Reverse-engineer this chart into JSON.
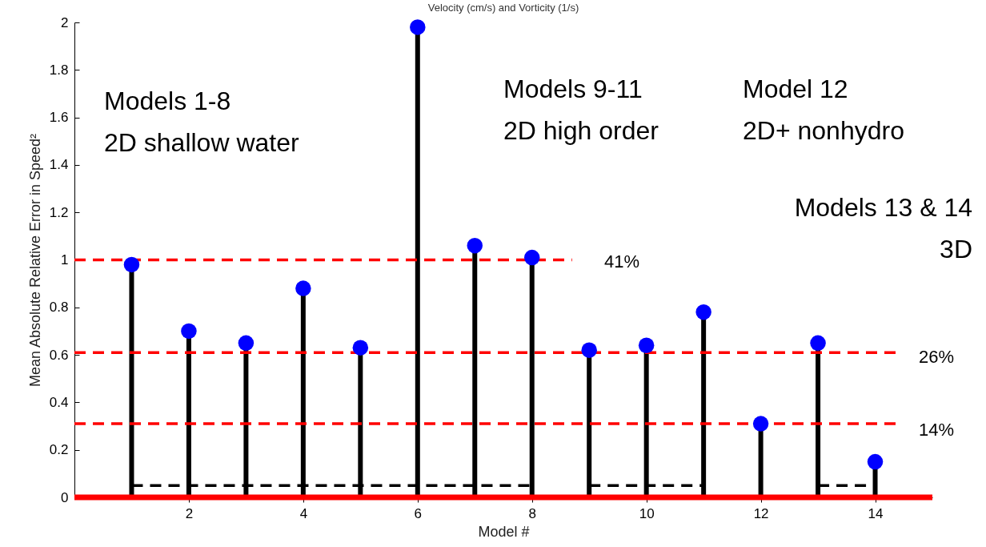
{
  "chart_data": {
    "type": "lollipop",
    "title": "Velocity (cm/s) and Vorticity (1/s)",
    "xlabel": "Model #",
    "ylabel": "Mean Absolute Relative Error in Speed²",
    "xlim": [
      0,
      15
    ],
    "xticks": [
      2,
      4,
      6,
      8,
      10,
      12,
      14
    ],
    "ylim": [
      0,
      2
    ],
    "yticks": [
      0,
      0.2,
      0.4,
      0.6,
      0.8,
      1,
      1.2,
      1.4,
      1.6,
      1.8,
      2
    ],
    "marker": "circle",
    "series": [
      {
        "color": "#0000ff",
        "x": [
          1,
          2,
          3,
          4,
          5,
          6,
          7,
          8,
          9,
          10,
          11,
          12,
          13,
          14
        ],
        "values": [
          0.98,
          0.7,
          0.65,
          0.88,
          0.63,
          1.98,
          1.06,
          1.01,
          0.62,
          0.64,
          0.78,
          0.31,
          0.65,
          0.15
        ]
      },
      {
        "type": "line",
        "marker": "none",
        "color": "#ff0000",
        "line_style": "dashed",
        "x": [
          0,
          8.7
        ],
        "values": [
          1,
          1
        ]
      },
      {
        "type": "line",
        "marker": "none",
        "color": "#ff0000",
        "line_style": "dashed",
        "x": [
          0,
          14.4
        ],
        "values": [
          0.61,
          0.61
        ]
      },
      {
        "type": "line",
        "marker": "none",
        "color": "#ff0000",
        "line_style": "dashed",
        "x": [
          0,
          14.4
        ],
        "values": [
          0.31,
          0.31
        ]
      },
      {
        "type": "line",
        "marker": "none",
        "color": "#000000",
        "line_style": "dashed",
        "x": [
          1,
          8
        ],
        "values": [
          0.05,
          0.05
        ]
      },
      {
        "type": "line",
        "marker": "none",
        "color": "#000000",
        "line_style": "dashed",
        "x": [
          9,
          11
        ],
        "values": [
          0.05,
          0.05
        ]
      },
      {
        "type": "line",
        "marker": "none",
        "color": "#000000",
        "line_style": "dashed",
        "x": [
          13,
          14
        ],
        "values": [
          0.05,
          0.05
        ]
      }
    ],
    "ref_lines": [
      {
        "axis": "y",
        "value": 0,
        "color": "#ff0000",
        "line_style": "solid"
      }
    ],
    "annotations": [
      "Models 1-8\n2D shallow water",
      "Models 9-11\n2D high order",
      "Model 12\n2D+ nonhydro",
      "Models 13 & 14\n3D",
      "41%",
      "26%",
      "14%"
    ]
  }
}
